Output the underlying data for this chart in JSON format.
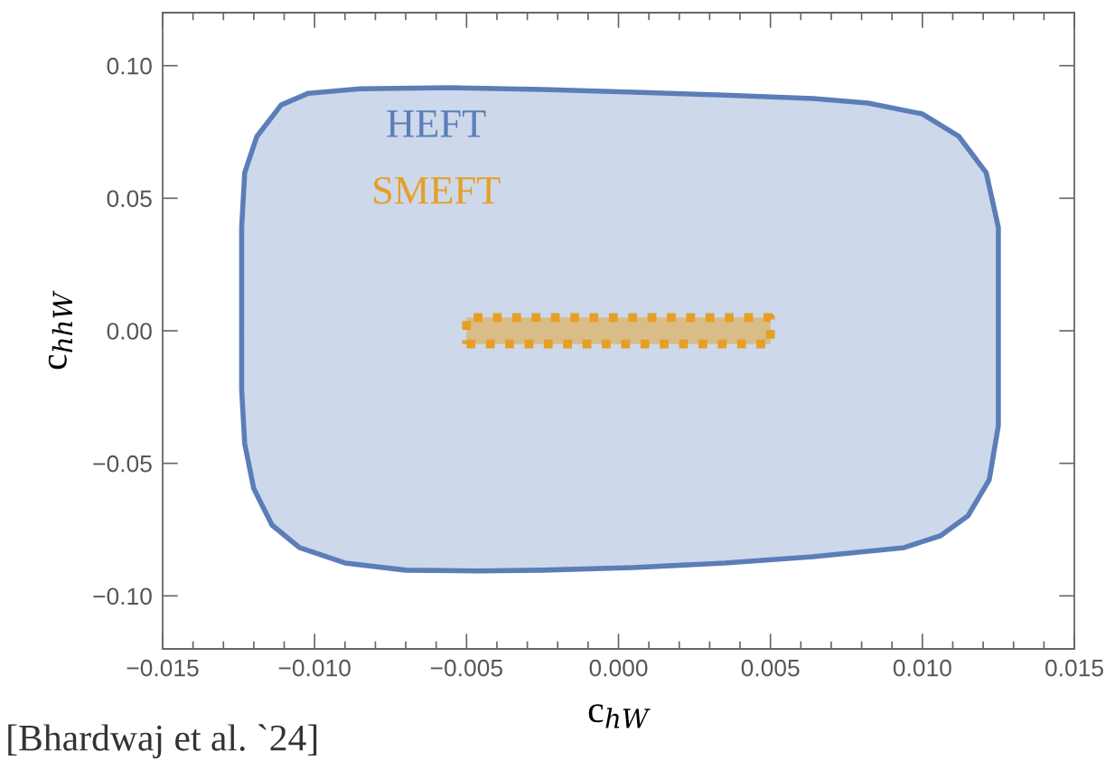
{
  "chart_data": {
    "type": "area",
    "xlabel": "c$_{hW}$",
    "ylabel": "c$_{hhW}$",
    "annotations": [
      "[Bhardwaj et al. `24]"
    ],
    "xlim": [
      -0.015,
      0.015
    ],
    "xticks": [
      {
        "value": -0.015,
        "label": "−0.015"
      },
      {
        "value": -0.01,
        "label": "−0.010"
      },
      {
        "value": -0.005,
        "label": "−0.005"
      },
      {
        "value": 0,
        "label": "0.000"
      },
      {
        "value": 0.005,
        "label": "0.005"
      },
      {
        "value": 0.01,
        "label": "0.010"
      },
      {
        "value": 0.015,
        "label": "0.015"
      }
    ],
    "ylim": [
      -0.12,
      0.12
    ],
    "yticks": [
      {
        "value": -0.1,
        "label": "−0.10"
      },
      {
        "value": -0.05,
        "label": "−0.05"
      },
      {
        "value": 0,
        "label": "0.00"
      },
      {
        "value": 0.05,
        "label": "0.05"
      },
      {
        "value": 0.1,
        "label": "0.10"
      }
    ],
    "grid": false,
    "legend": "top left",
    "series": [
      {
        "name": "HEFT",
        "color": "#5b7db8",
        "line_style": "solid",
        "x": [
          -0.0124,
          -0.0124,
          -0.0123,
          -0.0119,
          -0.0111,
          -0.0102,
          -0.0085,
          -0.0055,
          -0.0025,
          0.0005,
          0.0035,
          0.0064,
          0.0082,
          0.01,
          0.0112,
          0.0121,
          0.0125,
          0.0125,
          0.0125,
          0.0122,
          0.0115,
          0.0106,
          0.0094,
          0.0064,
          0.0035,
          0.0005,
          -0.0025,
          -0.0046,
          -0.007,
          -0.009,
          -0.0105,
          -0.0114,
          -0.012,
          -0.0123,
          -0.0124,
          -0.0124
        ],
        "values": [
          0,
          0.039,
          0.0596,
          0.0733,
          0.0852,
          0.0896,
          0.0913,
          0.0917,
          0.091,
          0.09,
          0.0889,
          0.0876,
          0.0859,
          0.0818,
          0.0733,
          0.0596,
          0.039,
          0,
          -0.0358,
          -0.0562,
          -0.0698,
          -0.0773,
          -0.0818,
          -0.0852,
          -0.0876,
          -0.0893,
          -0.0903,
          -0.0906,
          -0.0903,
          -0.0876,
          -0.0818,
          -0.0733,
          -0.0596,
          -0.0426,
          -0.0221,
          0
        ]
      },
      {
        "name": "SMEFT",
        "color": "#e69f24",
        "line_style": "dotted",
        "x": [
          -0.005,
          0.005,
          0.005,
          -0.005,
          -0.005
        ],
        "values": [
          -0.005,
          -0.005,
          0.005,
          0.005,
          -0.005
        ]
      }
    ]
  }
}
